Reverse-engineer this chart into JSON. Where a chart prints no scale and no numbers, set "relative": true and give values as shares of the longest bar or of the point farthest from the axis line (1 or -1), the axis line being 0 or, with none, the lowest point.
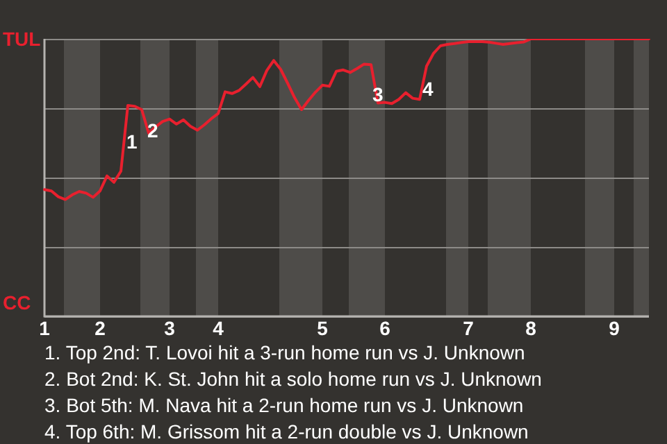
{
  "chart_data": {
    "type": "line",
    "relative": true,
    "categories": [
      "1",
      null,
      null,
      null,
      null,
      null,
      null,
      null,
      "2",
      null,
      null,
      null,
      null,
      null,
      null,
      null,
      null,
      null,
      "3",
      null,
      null,
      null,
      null,
      null,
      null,
      "4",
      null,
      null,
      null,
      null,
      null,
      null,
      null,
      null,
      null,
      null,
      null,
      null,
      null,
      null,
      "5",
      null,
      null,
      null,
      null,
      null,
      null,
      null,
      null,
      "6",
      null,
      null,
      null,
      null,
      null,
      null,
      null,
      null,
      null,
      null,
      null,
      "7",
      null,
      null,
      null,
      null,
      null,
      null,
      null,
      null,
      "8",
      null,
      null,
      null,
      null,
      null,
      null,
      null,
      null,
      null,
      null,
      null,
      "9",
      null,
      null,
      null,
      null,
      null
    ],
    "series": [
      {
        "color": "#e8202e",
        "values": [
          0.457,
          0.452,
          0.431,
          0.421,
          0.438,
          0.45,
          0.444,
          0.429,
          0.452,
          0.506,
          0.483,
          0.523,
          0.76,
          0.757,
          0.745,
          0.66,
          0.683,
          0.702,
          0.711,
          0.693,
          0.708,
          0.685,
          0.671,
          0.69,
          0.712,
          0.731,
          0.809,
          0.803,
          0.814,
          0.837,
          0.861,
          0.828,
          0.886,
          0.922,
          0.89,
          0.84,
          0.788,
          0.745,
          0.778,
          0.808,
          0.833,
          0.829,
          0.883,
          0.888,
          0.879,
          0.893,
          0.909,
          0.907,
          0.769,
          0.771,
          0.767,
          0.782,
          0.806,
          0.786,
          0.782,
          0.902,
          0.948,
          0.975,
          0.98,
          0.983,
          0.987,
          0.99,
          0.99,
          0.99,
          0.988,
          0.984,
          0.98,
          0.983,
          0.986,
          0.989,
          1,
          1,
          1,
          1,
          1,
          1,
          1,
          1,
          1,
          1,
          1,
          1,
          1,
          1,
          1,
          1,
          1,
          1
        ]
      }
    ],
    "grid": "y",
    "legend": false,
    "marker": "none",
    "line_style": "solid",
    "annotations": [
      "1",
      "2",
      "3",
      "4",
      "TUL",
      "CC",
      "1. Top 2nd: T. Lovoi hit a 3-run home run vs J. Unknown",
      "2. Bot 2nd: K. St. John hit a solo home run vs J. Unknown",
      "3. Bot 5th: M. Nava hit a 2-run home run vs J. Unknown",
      "4. Top 6th: M. Grissom hit a 2-run double vs J. Unknown"
    ]
  }
}
